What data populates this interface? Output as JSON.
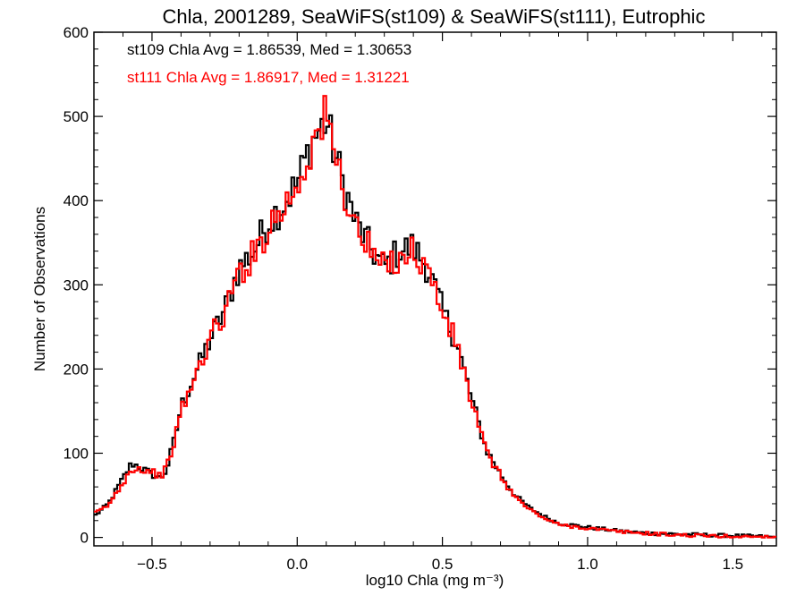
{
  "chart_data": {
    "type": "histogram-step",
    "title": "Chla, 2001289, SeaWiFS(st109) & SeaWiFS(st111), Eutrophic",
    "xlabel": "log10 Chla (mg m⁻³)",
    "ylabel": "Number of Observations",
    "xlim": [
      -0.7,
      1.65
    ],
    "ylim": [
      -10,
      600
    ],
    "xticks": [
      -0.5,
      0.0,
      0.5,
      1.0,
      1.5
    ],
    "xtick_labels": [
      "−0.5",
      "0.0",
      "0.5",
      "1.0",
      "1.5"
    ],
    "yticks": [
      0,
      100,
      200,
      300,
      400,
      500,
      600
    ],
    "ytick_labels": [
      "0",
      "100",
      "200",
      "300",
      "400",
      "500",
      "600"
    ],
    "grid": false,
    "annotations": [
      {
        "text": "st109 Chla Avg = 1.86539, Med = 1.30653",
        "color": "#000000"
      },
      {
        "text": "st111 Chla Avg = 1.86917, Med = 1.31221",
        "color": "#ff0000"
      }
    ],
    "series": [
      {
        "color": "#000000",
        "x": [
          -0.7,
          -0.65,
          -0.6,
          -0.57,
          -0.55,
          -0.5,
          -0.47,
          -0.45,
          -0.42,
          -0.4,
          -0.35,
          -0.3,
          -0.25,
          -0.2,
          -0.15,
          -0.1,
          -0.05,
          0.0,
          0.05,
          0.1,
          0.15,
          0.2,
          0.25,
          0.3,
          0.35,
          0.4,
          0.45,
          0.5,
          0.55,
          0.6,
          0.65,
          0.7,
          0.75,
          0.8,
          0.85,
          0.9,
          1.0,
          1.1,
          1.2,
          1.3,
          1.4,
          1.5,
          1.6,
          1.65
        ],
        "y": [
          25,
          40,
          70,
          88,
          85,
          75,
          70,
          80,
          120,
          155,
          195,
          235,
          270,
          320,
          340,
          375,
          395,
          420,
          470,
          495,
          430,
          375,
          345,
          320,
          340,
          345,
          320,
          270,
          230,
          165,
          105,
          75,
          50,
          35,
          25,
          17,
          12,
          8,
          5,
          4,
          3,
          2,
          1,
          0
        ]
      },
      {
        "color": "#ff0000",
        "x": [
          -0.7,
          -0.65,
          -0.6,
          -0.57,
          -0.55,
          -0.5,
          -0.47,
          -0.45,
          -0.42,
          -0.4,
          -0.35,
          -0.3,
          -0.25,
          -0.2,
          -0.15,
          -0.1,
          -0.05,
          0.0,
          0.05,
          0.1,
          0.15,
          0.2,
          0.25,
          0.3,
          0.35,
          0.4,
          0.45,
          0.5,
          0.55,
          0.6,
          0.65,
          0.7,
          0.75,
          0.8,
          0.85,
          0.9,
          1.0,
          1.1,
          1.2,
          1.3,
          1.4,
          1.5,
          1.6,
          1.65
        ],
        "y": [
          28,
          38,
          65,
          82,
          82,
          78,
          73,
          82,
          118,
          150,
          190,
          238,
          265,
          315,
          335,
          370,
          390,
          418,
          465,
          500,
          425,
          370,
          340,
          318,
          335,
          340,
          318,
          268,
          228,
          162,
          102,
          73,
          48,
          33,
          23,
          15,
          11,
          7,
          5,
          3,
          2,
          1,
          1,
          0
        ]
      }
    ]
  }
}
